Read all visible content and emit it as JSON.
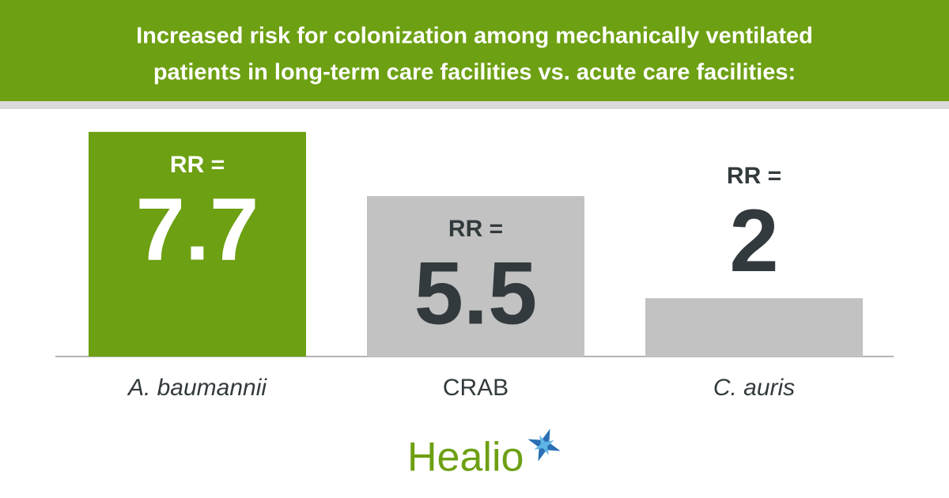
{
  "chart_data": {
    "type": "bar",
    "title_lines": [
      "Increased risk for colonization among mechanically ventilated",
      "patients in long-term care facilities vs. acute care facilities:"
    ],
    "categories": [
      "A. baumannii",
      "CRAB",
      "C. auris"
    ],
    "categories_italic": [
      true,
      false,
      true
    ],
    "values": [
      7.7,
      5.5,
      2
    ],
    "value_prefix": "RR =",
    "colors": [
      "#6da012",
      "#c2c2c2",
      "#c2c2c2"
    ],
    "value_label_colors": [
      "#ffffff",
      "#333a3d",
      "#333a3d"
    ],
    "ylim": [
      0,
      8
    ],
    "logo": "Healio"
  }
}
